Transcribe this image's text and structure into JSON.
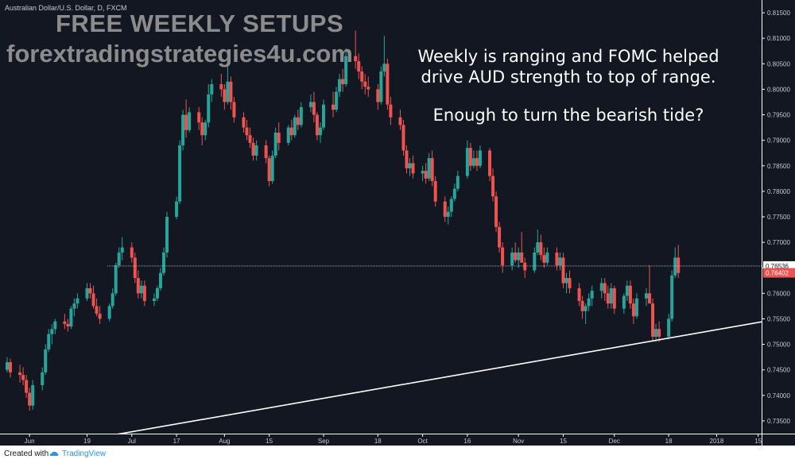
{
  "symbol": "Australian Dollar/U.S. Dollar, D, FXCM",
  "watermark": {
    "line1": "FREE WEEKLY SETUPS",
    "line2": "forextradingstrategies4u.com"
  },
  "annotation": {
    "line1": "Weekly is ranging and FOMC helped",
    "line2": "drive AUD strength to top of range.",
    "line3": "Enough to turn the bearish tide?"
  },
  "footer": {
    "created": "Created with",
    "brand": "TradingView"
  },
  "colors": {
    "background": "#131722",
    "up": "#26a69a",
    "down": "#ef5350",
    "trendline": "#ffffff",
    "price_label_gray": "#ffffff",
    "price_label_red": "#ef5350"
  },
  "chart_data": {
    "type": "candlestick",
    "yaxis": {
      "min": 0.7325,
      "max": 0.8175,
      "ticks": [
        "0.81500",
        "0.81000",
        "0.80500",
        "0.80000",
        "0.79500",
        "0.79000",
        "0.78500",
        "0.78000",
        "0.77500",
        "0.77000",
        "0.76500",
        "0.76000",
        "0.75500",
        "0.75000",
        "0.74500",
        "0.74000",
        "0.73500"
      ]
    },
    "xaxis_labels": [
      {
        "label": "Jun",
        "at": "2017-06-01"
      },
      {
        "label": "19",
        "at": "2017-06-19"
      },
      {
        "label": "Jul",
        "at": "2017-07-03"
      },
      {
        "label": "17",
        "at": "2017-07-17"
      },
      {
        "label": "Aug",
        "at": "2017-08-01"
      },
      {
        "label": "15",
        "at": "2017-08-15"
      },
      {
        "label": "Sep",
        "at": "2017-09-01"
      },
      {
        "label": "18",
        "at": "2017-09-18"
      },
      {
        "label": "Oct",
        "at": "2017-10-02"
      },
      {
        "label": "16",
        "at": "2017-10-16"
      },
      {
        "label": "Nov",
        "at": "2017-11-01"
      },
      {
        "label": "15",
        "at": "2017-11-15"
      },
      {
        "label": "Dec",
        "at": "2017-12-01"
      },
      {
        "label": "18",
        "at": "2017-12-18"
      },
      {
        "label": "2018",
        "at": "2018-01-02"
      },
      {
        "label": "15",
        "at": "2018-01-15"
      }
    ],
    "price_labels": [
      {
        "value": 0.76536,
        "text": "0.76536",
        "style": "line"
      },
      {
        "value": 0.76402,
        "text": "0.76402",
        "style": "last"
      }
    ],
    "horizontal_line": 0.76536,
    "trendline": {
      "from": {
        "date": "2017-05-15",
        "price": 0.7275
      },
      "to": {
        "date": "2018-01-27",
        "price": 0.7556
      }
    },
    "grid": false,
    "candles_ohlc_daily": [
      [
        "2017-05-25",
        0.745,
        0.7475,
        0.7445,
        0.7465
      ],
      [
        "2017-05-26",
        0.7465,
        0.7472,
        0.7435,
        0.7445
      ],
      [
        "2017-05-29",
        0.7445,
        0.746,
        0.7425,
        0.744
      ],
      [
        "2017-05-30",
        0.744,
        0.7455,
        0.742,
        0.743
      ],
      [
        "2017-05-31",
        0.743,
        0.744,
        0.7395,
        0.7405
      ],
      [
        "2017-06-01",
        0.7405,
        0.7415,
        0.737,
        0.738
      ],
      [
        "2017-06-02",
        0.738,
        0.743,
        0.7372,
        0.742
      ],
      [
        "2017-06-05",
        0.742,
        0.7455,
        0.741,
        0.7445
      ],
      [
        "2017-06-06",
        0.7445,
        0.75,
        0.744,
        0.749
      ],
      [
        "2017-06-07",
        0.749,
        0.753,
        0.7485,
        0.752
      ],
      [
        "2017-06-08",
        0.752,
        0.754,
        0.75,
        0.753
      ],
      [
        "2017-06-09",
        0.753,
        0.755,
        0.752,
        0.7545
      ],
      [
        "2017-06-12",
        0.7545,
        0.756,
        0.753,
        0.754
      ],
      [
        "2017-06-13",
        0.754,
        0.755,
        0.7525,
        0.7535
      ],
      [
        "2017-06-14",
        0.7535,
        0.7575,
        0.753,
        0.757
      ],
      [
        "2017-06-15",
        0.757,
        0.759,
        0.7555,
        0.758
      ],
      [
        "2017-06-16",
        0.758,
        0.76,
        0.757,
        0.759
      ],
      [
        "2017-06-19",
        0.759,
        0.762,
        0.7585,
        0.761
      ],
      [
        "2017-06-20",
        0.761,
        0.762,
        0.759,
        0.76
      ],
      [
        "2017-06-21",
        0.76,
        0.7615,
        0.757,
        0.7575
      ],
      [
        "2017-06-22",
        0.7575,
        0.759,
        0.7555,
        0.756
      ],
      [
        "2017-06-23",
        0.756,
        0.7575,
        0.754,
        0.755
      ],
      [
        "2017-06-26",
        0.755,
        0.758,
        0.7545,
        0.7575
      ],
      [
        "2017-06-27",
        0.7575,
        0.761,
        0.757,
        0.76
      ],
      [
        "2017-06-28",
        0.76,
        0.766,
        0.7595,
        0.7655
      ],
      [
        "2017-06-29",
        0.7655,
        0.769,
        0.765,
        0.768
      ],
      [
        "2017-06-30",
        0.768,
        0.771,
        0.7665,
        0.769
      ],
      [
        "2017-07-03",
        0.769,
        0.77,
        0.766,
        0.767
      ],
      [
        "2017-07-04",
        0.767,
        0.768,
        0.762,
        0.763
      ],
      [
        "2017-07-05",
        0.763,
        0.7645,
        0.759,
        0.76
      ],
      [
        "2017-07-06",
        0.76,
        0.7625,
        0.759,
        0.7615
      ],
      [
        "2017-07-07",
        0.7615,
        0.7625,
        0.7575,
        0.7585
      ],
      [
        "2017-07-10",
        0.7585,
        0.76,
        0.7575,
        0.759
      ],
      [
        "2017-07-11",
        0.759,
        0.7615,
        0.7585,
        0.761
      ],
      [
        "2017-07-12",
        0.761,
        0.765,
        0.7605,
        0.764
      ],
      [
        "2017-07-13",
        0.764,
        0.769,
        0.7635,
        0.768
      ],
      [
        "2017-07-14",
        0.768,
        0.776,
        0.767,
        0.775
      ],
      [
        "2017-07-17",
        0.775,
        0.779,
        0.7745,
        0.778
      ],
      [
        "2017-07-18",
        0.778,
        0.79,
        0.7775,
        0.789
      ],
      [
        "2017-07-19",
        0.789,
        0.796,
        0.788,
        0.795
      ],
      [
        "2017-07-20",
        0.795,
        0.798,
        0.7905,
        0.792
      ],
      [
        "2017-07-21",
        0.792,
        0.7965,
        0.7915,
        0.7955
      ],
      [
        "2017-07-24",
        0.7955,
        0.7965,
        0.792,
        0.7935
      ],
      [
        "2017-07-25",
        0.7935,
        0.7945,
        0.789,
        0.791
      ],
      [
        "2017-07-26",
        0.791,
        0.794,
        0.79,
        0.7935
      ],
      [
        "2017-07-27",
        0.7935,
        0.801,
        0.7925,
        0.799
      ],
      [
        "2017-07-28",
        0.799,
        0.802,
        0.7975,
        0.801
      ],
      [
        "2017-07-31",
        0.801,
        0.803,
        0.7985,
        0.8
      ],
      [
        "2017-08-01",
        0.8,
        0.801,
        0.796,
        0.7975
      ],
      [
        "2017-08-02",
        0.7975,
        0.806,
        0.797,
        0.8015
      ],
      [
        "2017-08-03",
        0.8015,
        0.8025,
        0.796,
        0.7975
      ],
      [
        "2017-08-04",
        0.7975,
        0.7985,
        0.7935,
        0.7945
      ],
      [
        "2017-08-07",
        0.7945,
        0.7955,
        0.7915,
        0.7925
      ],
      [
        "2017-08-08",
        0.7925,
        0.794,
        0.79,
        0.791
      ],
      [
        "2017-08-09",
        0.791,
        0.7925,
        0.7885,
        0.7895
      ],
      [
        "2017-08-10",
        0.7895,
        0.7905,
        0.786,
        0.787
      ],
      [
        "2017-08-11",
        0.787,
        0.79,
        0.786,
        0.789
      ],
      [
        "2017-08-14",
        0.789,
        0.79,
        0.7855,
        0.7865
      ],
      [
        "2017-08-15",
        0.7865,
        0.787,
        0.781,
        0.782
      ],
      [
        "2017-08-16",
        0.782,
        0.788,
        0.7815,
        0.787
      ],
      [
        "2017-08-17",
        0.787,
        0.7925,
        0.7865,
        0.7915
      ],
      [
        "2017-08-18",
        0.7915,
        0.7935,
        0.788,
        0.7895
      ],
      [
        "2017-08-21",
        0.7895,
        0.793,
        0.789,
        0.7925
      ],
      [
        "2017-08-22",
        0.7925,
        0.794,
        0.79,
        0.791
      ],
      [
        "2017-08-23",
        0.791,
        0.795,
        0.7905,
        0.7945
      ],
      [
        "2017-08-24",
        0.7945,
        0.796,
        0.792,
        0.793
      ],
      [
        "2017-08-25",
        0.793,
        0.7975,
        0.7925,
        0.7965
      ],
      [
        "2017-08-28",
        0.7965,
        0.799,
        0.7955,
        0.7975
      ],
      [
        "2017-08-29",
        0.7975,
        0.7995,
        0.7935,
        0.795
      ],
      [
        "2017-08-30",
        0.795,
        0.7955,
        0.79,
        0.791
      ],
      [
        "2017-08-31",
        0.791,
        0.7935,
        0.7895,
        0.7925
      ],
      [
        "2017-09-01",
        0.7925,
        0.798,
        0.792,
        0.797
      ],
      [
        "2017-09-04",
        0.797,
        0.7995,
        0.7945,
        0.796
      ],
      [
        "2017-09-05",
        0.796,
        0.8005,
        0.7955,
        0.7995
      ],
      [
        "2017-09-06",
        0.7995,
        0.803,
        0.7985,
        0.802
      ],
      [
        "2017-09-07",
        0.802,
        0.804,
        0.7995,
        0.801
      ],
      [
        "2017-09-08",
        0.801,
        0.808,
        0.8005,
        0.8065
      ],
      [
        "2017-09-11",
        0.8065,
        0.8115,
        0.804,
        0.8055
      ],
      [
        "2017-09-12",
        0.8055,
        0.807,
        0.802,
        0.8035
      ],
      [
        "2017-09-13",
        0.8035,
        0.8045,
        0.8,
        0.8015
      ],
      [
        "2017-09-14",
        0.8015,
        0.803,
        0.799,
        0.8005
      ],
      [
        "2017-09-15",
        0.8005,
        0.8025,
        0.7985,
        0.8
      ],
      [
        "2017-09-18",
        0.8,
        0.801,
        0.796,
        0.7975
      ],
      [
        "2017-09-19",
        0.7975,
        0.8045,
        0.797,
        0.8035
      ],
      [
        "2017-09-20",
        0.8035,
        0.8105,
        0.8025,
        0.805
      ],
      [
        "2017-09-21",
        0.805,
        0.806,
        0.796,
        0.797
      ],
      [
        "2017-09-22",
        0.797,
        0.7985,
        0.793,
        0.7945
      ],
      [
        "2017-09-25",
        0.7945,
        0.796,
        0.792,
        0.793
      ],
      [
        "2017-09-26",
        0.793,
        0.794,
        0.787,
        0.788
      ],
      [
        "2017-09-27",
        0.788,
        0.789,
        0.7835,
        0.7845
      ],
      [
        "2017-09-28",
        0.7845,
        0.7865,
        0.783,
        0.7855
      ],
      [
        "2017-09-29",
        0.7855,
        0.787,
        0.7825,
        0.7835
      ],
      [
        "2017-10-02",
        0.7835,
        0.785,
        0.782,
        0.784
      ],
      [
        "2017-10-03",
        0.784,
        0.7855,
        0.7815,
        0.7825
      ],
      [
        "2017-10-04",
        0.7825,
        0.7875,
        0.782,
        0.7865
      ],
      [
        "2017-10-05",
        0.7865,
        0.788,
        0.781,
        0.782
      ],
      [
        "2017-10-06",
        0.782,
        0.783,
        0.777,
        0.778
      ],
      [
        "2017-10-09",
        0.778,
        0.779,
        0.774,
        0.775
      ],
      [
        "2017-10-10",
        0.775,
        0.777,
        0.7735,
        0.776
      ],
      [
        "2017-10-11",
        0.776,
        0.779,
        0.775,
        0.7785
      ],
      [
        "2017-10-12",
        0.7785,
        0.7815,
        0.778,
        0.7805
      ],
      [
        "2017-10-13",
        0.7805,
        0.784,
        0.78,
        0.783
      ],
      [
        "2017-10-16",
        0.783,
        0.79,
        0.7825,
        0.7885
      ],
      [
        "2017-10-17",
        0.7885,
        0.7895,
        0.784,
        0.785
      ],
      [
        "2017-10-18",
        0.785,
        0.788,
        0.7845,
        0.7865
      ],
      [
        "2017-10-19",
        0.7865,
        0.788,
        0.784,
        0.785
      ],
      [
        "2017-10-20",
        0.785,
        0.789,
        0.7845,
        0.788
      ],
      [
        "2017-10-23",
        0.788,
        0.7885,
        0.782,
        0.783
      ],
      [
        "2017-10-24",
        0.783,
        0.7845,
        0.778,
        0.779
      ],
      [
        "2017-10-25",
        0.779,
        0.78,
        0.772,
        0.773
      ],
      [
        "2017-10-26",
        0.773,
        0.774,
        0.768,
        0.769
      ],
      [
        "2017-10-27",
        0.769,
        0.77,
        0.764,
        0.7655
      ],
      [
        "2017-10-30",
        0.7655,
        0.769,
        0.7645,
        0.768
      ],
      [
        "2017-10-31",
        0.768,
        0.77,
        0.766,
        0.7665
      ],
      [
        "2017-11-01",
        0.7665,
        0.769,
        0.765,
        0.768
      ],
      [
        "2017-11-02",
        0.768,
        0.772,
        0.767,
        0.766
      ],
      [
        "2017-11-03",
        0.766,
        0.767,
        0.763,
        0.7645
      ],
      [
        "2017-11-06",
        0.7645,
        0.769,
        0.764,
        0.768
      ],
      [
        "2017-11-07",
        0.768,
        0.7725,
        0.7675,
        0.77
      ],
      [
        "2017-11-08",
        0.77,
        0.7715,
        0.7665,
        0.7675
      ],
      [
        "2017-11-09",
        0.7675,
        0.769,
        0.765,
        0.766
      ],
      [
        "2017-11-10",
        0.766,
        0.769,
        0.7655,
        0.768
      ],
      [
        "2017-11-13",
        0.768,
        0.769,
        0.7645,
        0.7655
      ],
      [
        "2017-11-14",
        0.7655,
        0.768,
        0.7645,
        0.767
      ],
      [
        "2017-11-15",
        0.767,
        0.768,
        0.761,
        0.762
      ],
      [
        "2017-11-16",
        0.762,
        0.764,
        0.76,
        0.763
      ],
      [
        "2017-11-17",
        0.763,
        0.7645,
        0.76,
        0.761
      ],
      [
        "2017-11-20",
        0.761,
        0.762,
        0.7575,
        0.7585
      ],
      [
        "2017-11-21",
        0.7585,
        0.7595,
        0.755,
        0.7565
      ],
      [
        "2017-11-22",
        0.7565,
        0.758,
        0.754,
        0.7575
      ],
      [
        "2017-11-23",
        0.7575,
        0.76,
        0.7565,
        0.759
      ],
      [
        "2017-11-24",
        0.759,
        0.7615,
        0.7575,
        0.7605
      ],
      [
        "2017-11-27",
        0.7605,
        0.763,
        0.759,
        0.762
      ],
      [
        "2017-11-28",
        0.762,
        0.763,
        0.7585,
        0.76
      ],
      [
        "2017-11-29",
        0.76,
        0.7615,
        0.757,
        0.758
      ],
      [
        "2017-11-30",
        0.758,
        0.762,
        0.757,
        0.761
      ],
      [
        "2017-12-01",
        0.761,
        0.7615,
        0.756,
        0.757
      ],
      [
        "2017-12-04",
        0.757,
        0.76,
        0.756,
        0.7595
      ],
      [
        "2017-12-05",
        0.7595,
        0.7625,
        0.7585,
        0.7615
      ],
      [
        "2017-12-06",
        0.7615,
        0.7625,
        0.757,
        0.758
      ],
      [
        "2017-12-07",
        0.758,
        0.759,
        0.754,
        0.7555
      ],
      [
        "2017-12-08",
        0.7555,
        0.76,
        0.755,
        0.759
      ],
      [
        "2017-12-11",
        0.759,
        0.761,
        0.7575,
        0.76
      ],
      [
        "2017-12-12",
        0.76,
        0.7655,
        0.759,
        0.758
      ],
      [
        "2017-12-13",
        0.758,
        0.759,
        0.7505,
        0.7515
      ],
      [
        "2017-12-14",
        0.7515,
        0.754,
        0.7505,
        0.753
      ],
      [
        "2017-12-15",
        0.753,
        0.7545,
        0.7505,
        0.7515
      ],
      [
        "2017-12-18",
        0.7515,
        0.756,
        0.751,
        0.755
      ],
      [
        "2017-12-19",
        0.755,
        0.7645,
        0.7545,
        0.7635
      ],
      [
        "2017-12-20",
        0.7635,
        0.769,
        0.763,
        0.767
      ],
      [
        "2017-12-21",
        0.767,
        0.7695,
        0.763,
        0.764
      ]
    ]
  }
}
